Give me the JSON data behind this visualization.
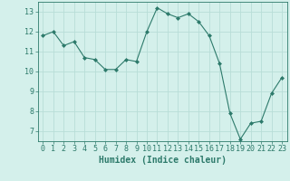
{
  "x": [
    0,
    1,
    2,
    3,
    4,
    5,
    6,
    7,
    8,
    9,
    10,
    11,
    12,
    13,
    14,
    15,
    16,
    17,
    18,
    19,
    20,
    21,
    22,
    23
  ],
  "y": [
    11.8,
    12.0,
    11.3,
    11.5,
    10.7,
    10.6,
    10.1,
    10.1,
    10.6,
    10.5,
    12.0,
    13.2,
    12.9,
    12.7,
    12.9,
    12.5,
    11.8,
    10.4,
    7.9,
    6.6,
    7.4,
    7.5,
    8.9,
    9.7
  ],
  "line_color": "#2d7a6b",
  "marker": "D",
  "marker_size": 2.0,
  "bg_color": "#d4f0eb",
  "grid_color": "#b8ddd7",
  "xlabel": "Humidex (Indice chaleur)",
  "xlabel_fontsize": 7,
  "tick_fontsize": 6,
  "ylim": [
    6.5,
    13.5
  ],
  "xlim": [
    -0.5,
    23.5
  ],
  "yticks": [
    7,
    8,
    9,
    10,
    11,
    12,
    13
  ],
  "xticks": [
    0,
    1,
    2,
    3,
    4,
    5,
    6,
    7,
    8,
    9,
    10,
    11,
    12,
    13,
    14,
    15,
    16,
    17,
    18,
    19,
    20,
    21,
    22,
    23
  ]
}
